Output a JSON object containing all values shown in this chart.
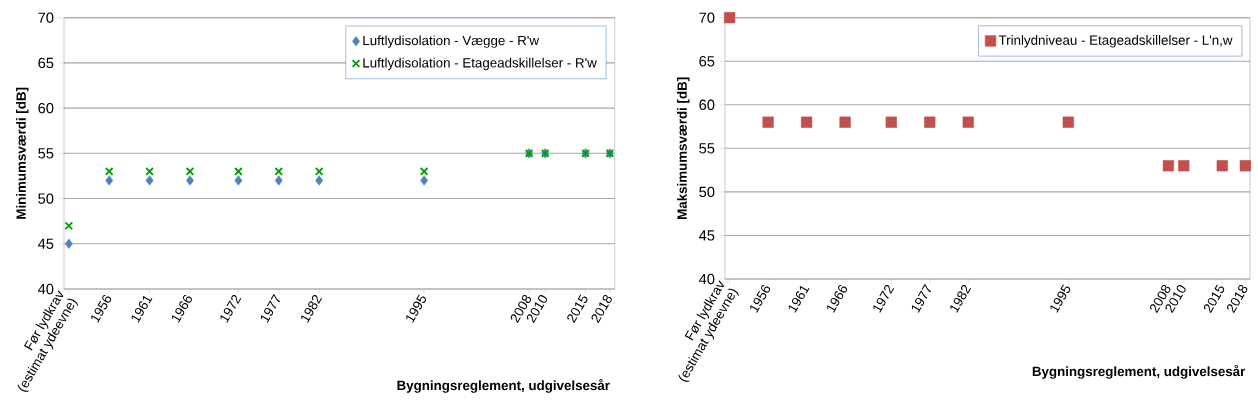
{
  "chart_data": [
    {
      "type": "scatter",
      "ylabel": "Minimumsværdi  [dB]",
      "xlabel": "Bygningsreglement, udgivelsesår",
      "x": [
        1951,
        1956,
        1961,
        1966,
        1972,
        1977,
        1982,
        1995,
        2008,
        2010,
        2015,
        2018
      ],
      "series": [
        {
          "name": "Luftlydisolation - Vægge - R'w",
          "color": "#4f81bd",
          "marker": "diamond",
          "values": [
            45,
            52,
            52,
            52,
            52,
            52,
            52,
            52,
            55,
            55,
            55,
            55
          ]
        },
        {
          "name": "Luftlydisolation - Etageadskillelser - R'w",
          "color": "#00a000",
          "marker": "cross",
          "values": [
            47,
            53,
            53,
            53,
            53,
            53,
            53,
            53,
            55,
            55,
            55,
            55
          ]
        }
      ],
      "xlim": [
        1950.4,
        2018.6
      ],
      "ylim": [
        40,
        70
      ],
      "xticks": [
        {
          "value": 1951,
          "label": "Før lydkrav (estimat ydeevne)"
        },
        1956,
        1961,
        1966,
        1972,
        1977,
        1982,
        1995,
        2008,
        2010,
        2015,
        2018
      ],
      "yticks": [
        40,
        45,
        50,
        55,
        60,
        65,
        70
      ],
      "grid": "y",
      "legend": "top right"
    },
    {
      "type": "scatter",
      "ylabel": "Maksimumsværdi  [dB]",
      "xlabel": "Bygningsreglement, udgivelsesår",
      "x": [
        1951,
        1956,
        1961,
        1966,
        1972,
        1977,
        1982,
        1995,
        2008,
        2010,
        2015,
        2018
      ],
      "series": [
        {
          "name": "Trinlydniveau - Etageadskillelser - L'n,w",
          "color": "#c0504d",
          "marker": "square",
          "values": [
            70,
            58,
            58,
            58,
            58,
            58,
            58,
            58,
            53,
            53,
            53,
            53
          ]
        }
      ],
      "xlim": [
        1950.4,
        2018.6
      ],
      "ylim": [
        40,
        70
      ],
      "xticks": [
        {
          "value": 1951,
          "label": "Før lydkrav (estimat ydeevne)"
        },
        1956,
        1961,
        1966,
        1972,
        1977,
        1982,
        1995,
        2008,
        2010,
        2015,
        2018
      ],
      "yticks": [
        40,
        45,
        50,
        55,
        60,
        65,
        70
      ],
      "grid": "y",
      "legend": "top right"
    }
  ]
}
